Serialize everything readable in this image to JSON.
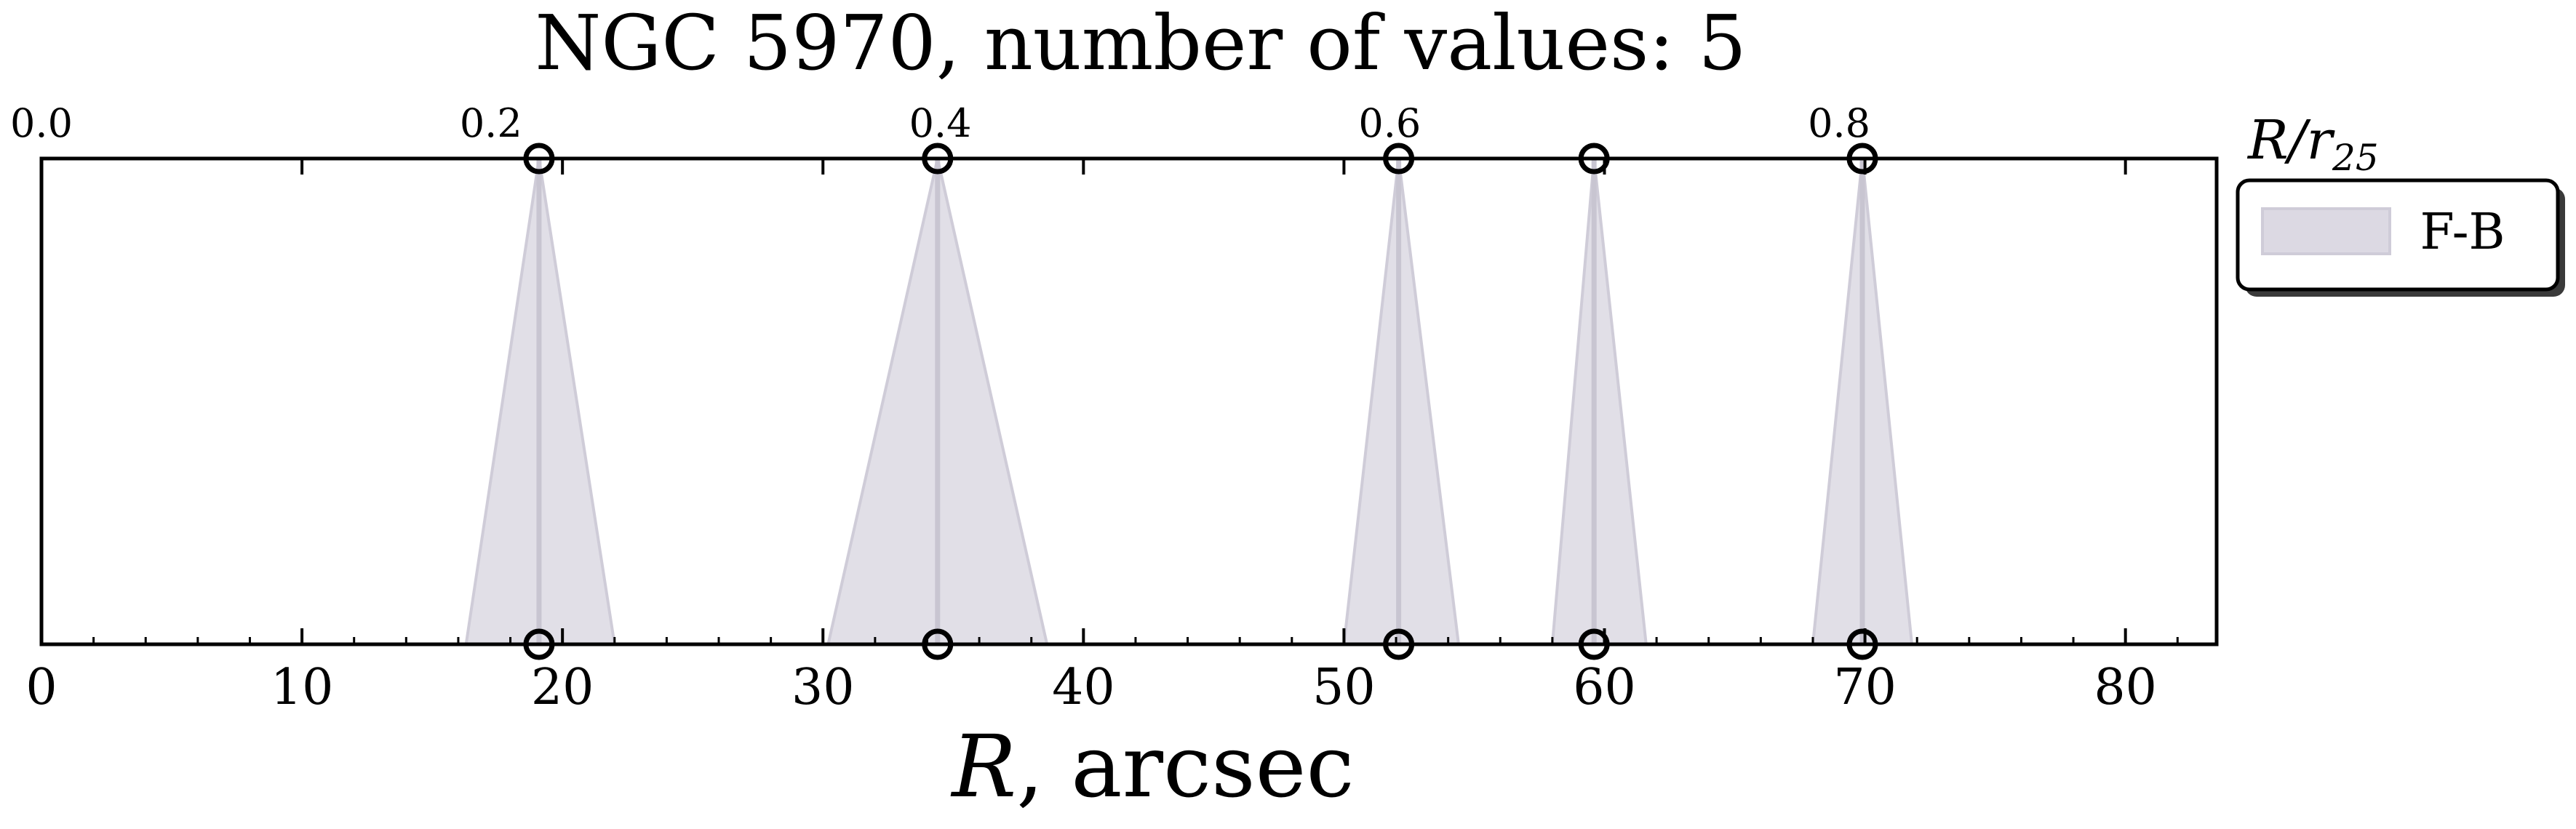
{
  "chart_data": {
    "type": "line",
    "title": "NGC 5970, number of values: 5",
    "xlabel_symbol": "R",
    "xlabel_unit": ", arcsec",
    "top_axis_label_symbol": "R/r",
    "top_axis_label_subscript": "25",
    "xlim": [
      0,
      83.5
    ],
    "xticks": [
      0,
      10,
      20,
      30,
      40,
      50,
      60,
      70,
      80
    ],
    "top_xticks": [
      "0.0",
      "0.2",
      "0.4",
      "0.6",
      "0.8"
    ],
    "top_xlim": [
      0.0,
      0.968
    ],
    "grid": false,
    "legend_position": "outside-right-top",
    "colors": {
      "fill": "#dcd9e3",
      "edge": "#cfccd8",
      "center_line": "#c8c5d1",
      "marker": "#000000"
    },
    "series": [
      {
        "name": "F-B",
        "points": [
          {
            "R": 19.1,
            "R_low": 16.3,
            "R_high": 22.0
          },
          {
            "R": 34.4,
            "R_low": 30.2,
            "R_high": 38.6
          },
          {
            "R": 52.1,
            "R_low": 50.0,
            "R_high": 54.4
          },
          {
            "R": 59.6,
            "R_low": 58.0,
            "R_high": 61.6
          },
          {
            "R": 69.9,
            "R_low": 68.0,
            "R_high": 71.8
          }
        ]
      }
    ]
  }
}
